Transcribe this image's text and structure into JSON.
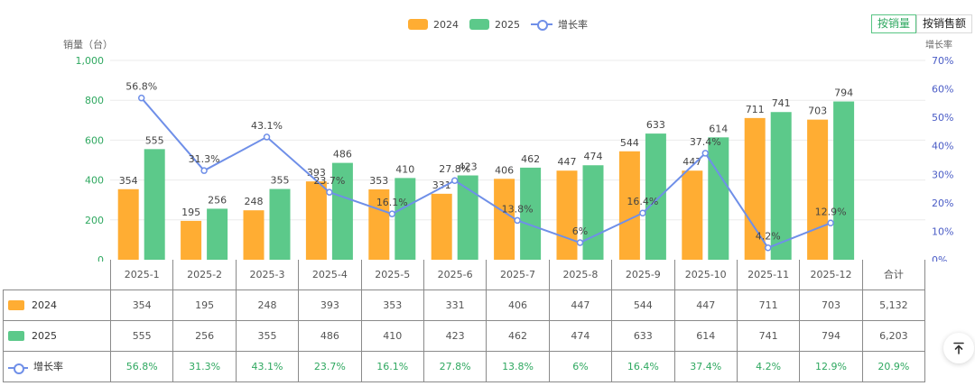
{
  "legend": {
    "s2024": "2024",
    "s2025": "2025",
    "growth": "增长率"
  },
  "mode_toggle": {
    "by_volume": "按销量",
    "by_sales": "按销售额"
  },
  "colors": {
    "s2024": "#ffad33",
    "s2025": "#5cc98a",
    "growth": "#6f8fe8",
    "pct_text": "#2fa860"
  },
  "table": {
    "total_header": "合计",
    "totals": {
      "s2024": "5,132",
      "s2025": "6,203",
      "growth": "20.9%"
    }
  },
  "chart_data": {
    "type": "bar",
    "title": "",
    "ylabel_left": "销量（台）",
    "ylabel_right": "增长率",
    "categories": [
      "2025-1",
      "2025-2",
      "2025-3",
      "2025-4",
      "2025-5",
      "2025-6",
      "2025-7",
      "2025-8",
      "2025-9",
      "2025-10",
      "2025-11",
      "2025-12"
    ],
    "series": [
      {
        "name": "2024",
        "type": "bar",
        "values": [
          354,
          195,
          248,
          393,
          353,
          331,
          406,
          447,
          544,
          447,
          711,
          703
        ]
      },
      {
        "name": "2025",
        "type": "bar",
        "values": [
          555,
          256,
          355,
          486,
          410,
          423,
          462,
          474,
          633,
          614,
          741,
          794
        ]
      },
      {
        "name": "增长率",
        "type": "line",
        "axis": "right",
        "values": [
          56.8,
          31.3,
          43.1,
          23.7,
          16.1,
          27.8,
          13.8,
          6,
          16.4,
          37.4,
          4.2,
          12.9
        ]
      }
    ],
    "ylim_left": [
      0,
      1000
    ],
    "yticks_left": [
      "0",
      "200",
      "400",
      "600",
      "800",
      "1,000"
    ],
    "ylim_right": [
      0,
      70
    ],
    "yticks_right": [
      "0%",
      "10%",
      "20%",
      "30%",
      "40%",
      "50%",
      "60%",
      "70%"
    ],
    "legend_position": "top-center",
    "grid": true
  }
}
